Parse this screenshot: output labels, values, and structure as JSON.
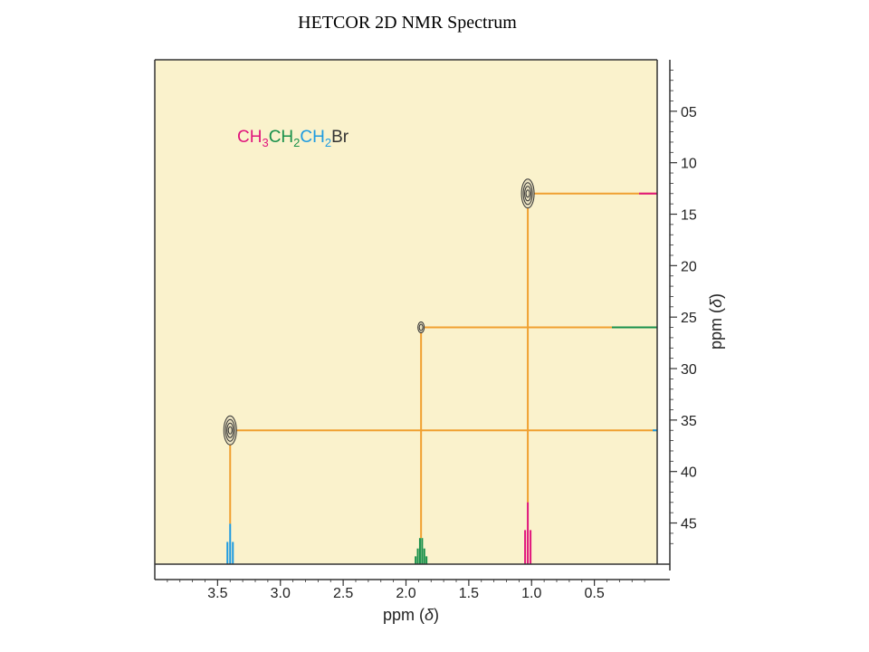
{
  "page": {
    "title": "HETCOR 2D NMR Spectrum"
  },
  "colors": {
    "background": "#faf2cc",
    "ch3": "#e0157c",
    "ch2_middle": "#18904a",
    "ch2_br": "#1e9be0",
    "correlation_line": "#f0a030",
    "axis": "#333333"
  },
  "chart_data": {
    "type": "heatmap",
    "title": "HETCOR 2D NMR Spectrum",
    "compound": {
      "formula_parts": [
        {
          "text": "CH",
          "color_key": "ch3"
        },
        {
          "text": "3",
          "color_key": "ch3",
          "sub": true
        },
        {
          "text": "CH",
          "color_key": "ch2_middle"
        },
        {
          "text": "2",
          "color_key": "ch2_middle",
          "sub": true
        },
        {
          "text": "CH",
          "color_key": "ch2_br"
        },
        {
          "text": "2",
          "color_key": "ch2_br",
          "sub": true
        },
        {
          "text": "Br",
          "color_key": "axis"
        }
      ]
    },
    "x_axis": {
      "label_main": "ppm (",
      "label_symbol": "δ",
      "label_end": ")",
      "range": [
        4.0,
        0.0
      ],
      "ticks": [
        3.5,
        3.0,
        2.5,
        2.0,
        1.5,
        1.0,
        0.5
      ],
      "tick_labels": [
        "3.5",
        "3.0",
        "2.5",
        "2.0",
        "1.5",
        "1.0",
        "0.5"
      ]
    },
    "y_axis": {
      "label_main": "ppm (",
      "label_symbol": "δ",
      "label_end": ")",
      "range": [
        0,
        49
      ],
      "ticks": [
        5,
        10,
        15,
        20,
        25,
        30,
        35,
        40,
        45
      ],
      "tick_labels": [
        "05",
        "10",
        "15",
        "20",
        "25",
        "30",
        "35",
        "40",
        "45"
      ]
    },
    "correlations": [
      {
        "group": "CH3",
        "h_ppm": 1.03,
        "c_ppm": 13.0,
        "color_key": "ch3",
        "multiplicity": 3,
        "h_peak_height": 0.95
      },
      {
        "group": "CH2",
        "h_ppm": 1.88,
        "c_ppm": 26.0,
        "color_key": "ch2_middle",
        "multiplicity": 6,
        "h_peak_height": 0.4
      },
      {
        "group": "CH2Br",
        "h_ppm": 3.4,
        "c_ppm": 36.0,
        "color_key": "ch2_br",
        "multiplicity": 3,
        "h_peak_height": 0.62
      }
    ]
  }
}
